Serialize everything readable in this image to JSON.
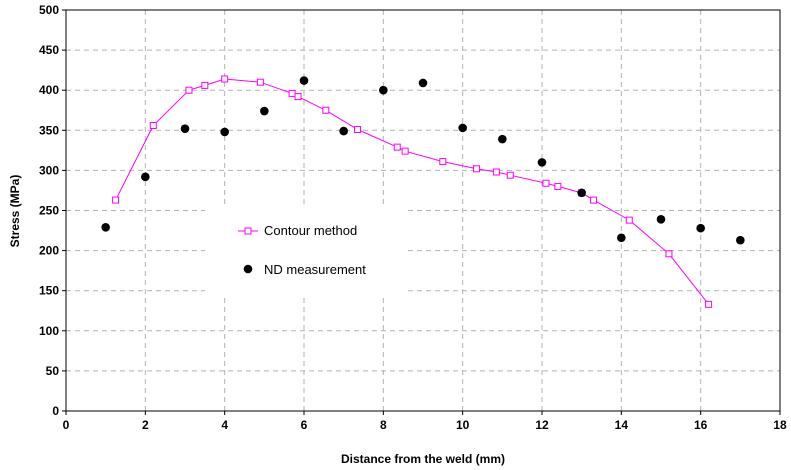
{
  "chart_data": {
    "type": "scatter",
    "title": "",
    "xlabel": "Distance from the weld (mm)",
    "ylabel": "Stress (MPa)",
    "xlim": [
      0,
      18
    ],
    "ylim": [
      0,
      500
    ],
    "xticks": [
      0,
      2,
      4,
      6,
      8,
      10,
      12,
      14,
      16,
      18
    ],
    "yticks": [
      0,
      50,
      100,
      150,
      200,
      250,
      300,
      350,
      400,
      450,
      500
    ],
    "xtick_labels": [
      "0",
      "2",
      "4",
      "6",
      "8",
      "10",
      "12",
      "14",
      "16",
      "18"
    ],
    "ytick_labels": [
      "0",
      "50",
      "100",
      "150",
      "200",
      "250",
      "300",
      "350",
      "400",
      "450",
      "500"
    ],
    "grid": true,
    "legend_position": "center-left",
    "series": [
      {
        "name": "Contour method",
        "style": "line-square-markers",
        "color": "#ff00ff",
        "x": [
          1.25,
          2.2,
          3.1,
          3.5,
          4.0,
          4.9,
          5.7,
          5.85,
          6.55,
          7.35,
          8.35,
          8.55,
          9.5,
          10.35,
          10.85,
          11.2,
          12.1,
          12.4,
          13.0,
          13.3,
          14.2,
          15.2,
          16.2
        ],
        "y": [
          263,
          356,
          400,
          406,
          414,
          410,
          396,
          392,
          375,
          351,
          329,
          324,
          311,
          302,
          298,
          294,
          284,
          280,
          272,
          263,
          238,
          196,
          133
        ]
      },
      {
        "name": "ND measurement",
        "style": "filled-circle-markers",
        "color": "#000000",
        "x": [
          1,
          2,
          3,
          4,
          5,
          6,
          7,
          8,
          9,
          10,
          11,
          12,
          13,
          14,
          15,
          16,
          17
        ],
        "y": [
          229,
          292,
          352,
          348,
          374,
          412,
          349,
          400,
          409,
          353,
          339,
          310,
          272,
          216,
          239,
          228,
          213
        ]
      }
    ]
  }
}
